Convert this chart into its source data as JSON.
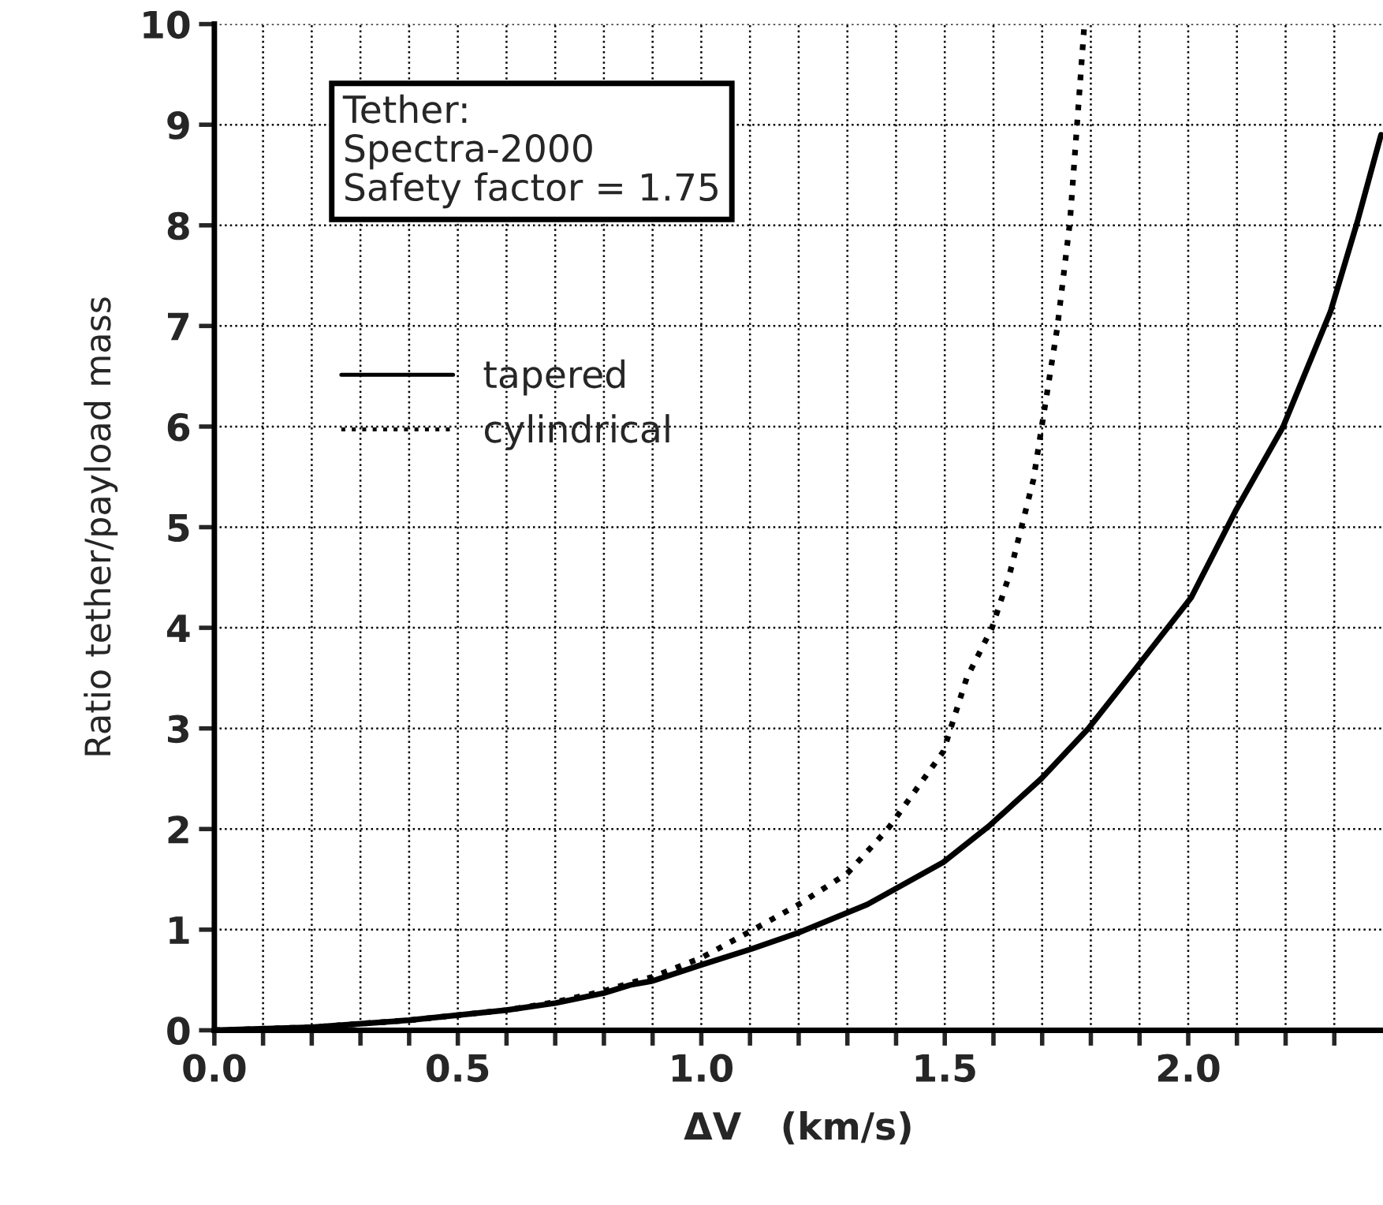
{
  "chart_data": {
    "type": "line",
    "xlabel": "ΔV   (km/s)",
    "ylabel": "Ratio tether/payload mass",
    "annotations": [
      "Tether:\nSpectra-2000\nSafety factor = 1.75"
    ],
    "xlim": [
      0,
      2.4
    ],
    "ylim": [
      0,
      10
    ],
    "xticks": [
      {
        "value": 0,
        "label": "0.0"
      },
      {
        "value": 0.1,
        "label": null
      },
      {
        "value": 0.2,
        "label": null
      },
      {
        "value": 0.3,
        "label": null
      },
      {
        "value": 0.4,
        "label": null
      },
      {
        "value": 0.5,
        "label": "0.5"
      },
      {
        "value": 0.6,
        "label": null
      },
      {
        "value": 0.7,
        "label": null
      },
      {
        "value": 0.8,
        "label": null
      },
      {
        "value": 0.9,
        "label": null
      },
      {
        "value": 1.0,
        "label": "1.0"
      },
      {
        "value": 1.1,
        "label": null
      },
      {
        "value": 1.2,
        "label": null
      },
      {
        "value": 1.3,
        "label": null
      },
      {
        "value": 1.4,
        "label": null
      },
      {
        "value": 1.5,
        "label": "1.5"
      },
      {
        "value": 1.6,
        "label": null
      },
      {
        "value": 1.7,
        "label": null
      },
      {
        "value": 1.8,
        "label": null
      },
      {
        "value": 1.9,
        "label": null
      },
      {
        "value": 2.0,
        "label": "2.0"
      },
      {
        "value": 2.1,
        "label": null
      },
      {
        "value": 2.2,
        "label": null
      },
      {
        "value": 2.3,
        "label": null
      }
    ],
    "yticks": [
      0,
      1,
      2,
      3,
      4,
      5,
      6,
      7,
      8,
      9,
      10
    ],
    "grid": true,
    "legend": "top left",
    "series": [
      {
        "name": "tapered",
        "color": "#000000",
        "line_style": "solid",
        "x": [
          0,
          0.2,
          0.4,
          0.6,
          0.7,
          0.8,
          0.854,
          0.9,
          1.0,
          1.104,
          1.2,
          1.341,
          1.497,
          1.591,
          1.698,
          1.795,
          1.893,
          2.006,
          2.097,
          2.195,
          2.292,
          2.347,
          2.396
        ],
        "values": [
          0,
          0.03,
          0.1,
          0.2,
          0.27,
          0.37,
          0.45,
          0.49,
          0.65,
          0.81,
          0.97,
          1.25,
          1.67,
          2.03,
          2.5,
          3.0,
          3.6,
          4.3,
          5.16,
          6.0,
          7.14,
          8.03,
          8.9
        ]
      },
      {
        "name": "cylindrical",
        "color": "#000000",
        "line_style": "dotted",
        "x": [
          0,
          0.2,
          0.4,
          0.6,
          0.7,
          0.8,
          0.854,
          0.9,
          1.0,
          1.107,
          1.2,
          1.3,
          1.383,
          1.497,
          1.545,
          1.597,
          1.633,
          1.682,
          1.731,
          1.757,
          1.786
        ],
        "values": [
          0,
          0.03,
          0.1,
          0.2,
          0.28,
          0.39,
          0.47,
          0.53,
          0.72,
          1.0,
          1.25,
          1.56,
          2.0,
          2.77,
          3.5,
          4.0,
          4.53,
          5.47,
          6.98,
          8.03,
          9.95
        ]
      }
    ]
  }
}
